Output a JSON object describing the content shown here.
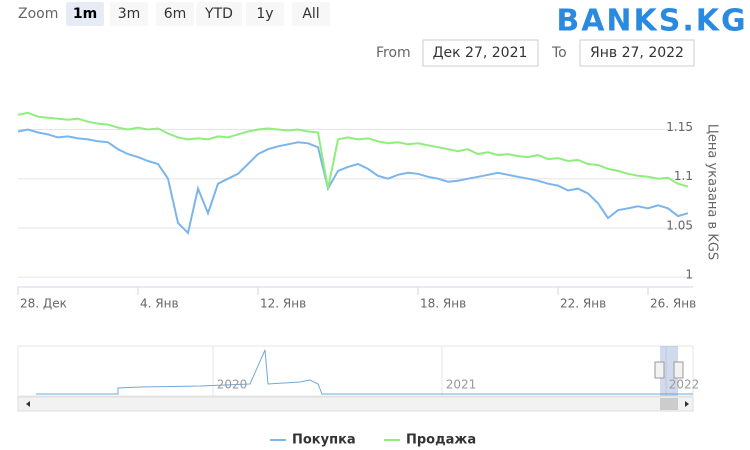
{
  "chart_data": {
    "type": "line",
    "categories": [
      "28. Дек",
      null,
      null,
      null,
      null,
      null,
      null,
      null,
      null,
      null,
      null,
      null,
      "4. Янв",
      null,
      null,
      null,
      null,
      null,
      null,
      null,
      null,
      null,
      null,
      null,
      "12. Янв",
      null,
      null,
      null,
      null,
      null,
      null,
      null,
      null,
      null,
      null,
      null,
      null,
      null,
      null,
      null,
      "18. Янв",
      null,
      null,
      null,
      null,
      null,
      null,
      null,
      null,
      null,
      null,
      null,
      null,
      null,
      "22. Янв",
      null,
      null,
      null,
      null,
      null,
      null,
      null,
      null,
      "26. Янв",
      null,
      null,
      null,
      null
    ],
    "series": [
      {
        "name": "Покупка",
        "color": "#7cb5ec",
        "values": [
          1.148,
          1.15,
          1.147,
          1.145,
          1.142,
          1.143,
          1.141,
          1.14,
          1.138,
          1.137,
          1.13,
          1.125,
          1.122,
          1.118,
          1.115,
          1.1,
          1.055,
          1.045,
          1.09,
          1.065,
          1.095,
          1.1,
          1.105,
          1.115,
          1.125,
          1.13,
          1.133,
          1.135,
          1.137,
          1.136,
          1.132,
          1.09,
          1.108,
          1.112,
          1.115,
          1.11,
          1.103,
          1.1,
          1.104,
          1.106,
          1.105,
          1.102,
          1.1,
          1.097,
          1.098,
          1.1,
          1.102,
          1.104,
          1.106,
          1.104,
          1.102,
          1.1,
          1.098,
          1.095,
          1.093,
          1.088,
          1.09,
          1.085,
          1.075,
          1.06,
          1.068,
          1.07,
          1.072,
          1.07,
          1.073,
          1.07,
          1.062,
          1.065
        ]
      },
      {
        "name": "Продажа",
        "color": "#90ed7d",
        "values": [
          1.165,
          1.167,
          1.163,
          1.162,
          1.161,
          1.16,
          1.161,
          1.158,
          1.156,
          1.155,
          1.152,
          1.15,
          1.152,
          1.15,
          1.151,
          1.146,
          1.142,
          1.14,
          1.141,
          1.14,
          1.143,
          1.142,
          1.145,
          1.148,
          1.15,
          1.151,
          1.15,
          1.149,
          1.15,
          1.148,
          1.147,
          1.09,
          1.14,
          1.142,
          1.14,
          1.141,
          1.138,
          1.136,
          1.137,
          1.135,
          1.136,
          1.134,
          1.132,
          1.13,
          1.128,
          1.13,
          1.125,
          1.127,
          1.124,
          1.125,
          1.123,
          1.122,
          1.124,
          1.12,
          1.121,
          1.118,
          1.119,
          1.115,
          1.114,
          1.11,
          1.108,
          1.105,
          1.103,
          1.102,
          1.1,
          1.101,
          1.095,
          1.092
        ]
      }
    ],
    "y_label": "Цена указана в KGS",
    "ylim": [
      0.99,
      1.18
    ],
    "yticks": [
      1,
      1.05,
      1.1,
      1.15
    ],
    "grid": true,
    "legend": "bottom"
  },
  "ui": {
    "logo": "BANKS.KG",
    "zoom_label": "Zoom",
    "zoom_buttons": [
      "1m",
      "3m",
      "6m",
      "YTD",
      "1y",
      "All"
    ],
    "from_label": "From",
    "from_value": "Дек 27, 2021",
    "to_label": "To",
    "to_value": "Янв 27, 2022",
    "navigator_labels": [
      "2020",
      "2021",
      "2022"
    ]
  }
}
